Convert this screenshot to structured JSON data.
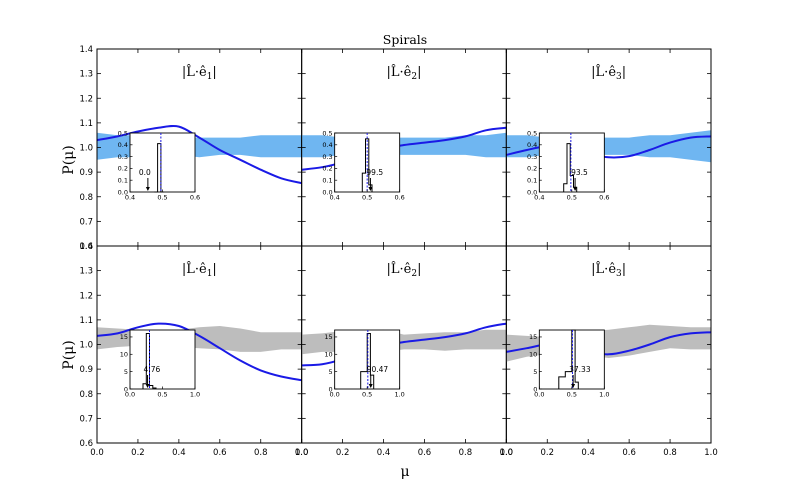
{
  "chart_data": {
    "type": "line",
    "title": "Spirals",
    "xlabel": "μ",
    "ylabel": "P(μ)",
    "colors": {
      "band_top": "#6fb6f1",
      "band_bottom": "#bdbdbd",
      "curve": "#1a1ae6",
      "inset_line": "#000000",
      "inset_median": "#1a1ae6",
      "inset_ref": "#000000"
    },
    "xlim": [
      0.0,
      1.0
    ],
    "xticks": [
      "0.0",
      "0.2",
      "0.4",
      "0.6",
      "0.8",
      "1.0"
    ],
    "rows": [
      {
        "name": "top",
        "ylim": [
          0.6,
          1.4
        ],
        "yticks": [
          "0.6",
          "0.7",
          "0.8",
          "0.9",
          "1.0",
          "1.1",
          "1.2",
          "1.3",
          "1.4"
        ],
        "ytick_values": [
          0.6,
          0.7,
          0.8,
          0.9,
          1.0,
          1.1,
          1.2,
          1.3,
          1.4
        ],
        "band_color": "#6fb6f1",
        "panels": [
          {
            "label": "|L̂·ê1|",
            "label_base": "|L̂·ê",
            "label_sub": "1",
            "band": {
              "x": [
                0,
                0.1,
                0.2,
                0.3,
                0.4,
                0.5,
                0.6,
                0.7,
                0.8,
                0.9,
                1.0
              ],
              "lower": [
                0.95,
                0.96,
                0.96,
                0.97,
                0.97,
                0.96,
                0.97,
                0.97,
                0.96,
                0.96,
                0.96
              ],
              "upper": [
                1.06,
                1.05,
                1.05,
                1.04,
                1.04,
                1.04,
                1.04,
                1.04,
                1.05,
                1.05,
                1.05
              ]
            },
            "curve": {
              "x": [
                0,
                0.1,
                0.2,
                0.3,
                0.4,
                0.5,
                0.6,
                0.7,
                0.8,
                0.9,
                1.0
              ],
              "y": [
                1.03,
                1.045,
                1.065,
                1.08,
                1.085,
                1.04,
                0.99,
                0.95,
                0.91,
                0.875,
                0.855
              ]
            },
            "inset": {
              "xlim": [
                0.4,
                0.6
              ],
              "ylim": [
                0.0,
                0.5
              ],
              "xticks": [
                "0.4",
                "0.5",
                "0.6"
              ],
              "yticks": [
                "0.0",
                "0.1",
                "0.2",
                "0.3",
                "0.4",
                "0.5"
              ],
              "ytick_values": [
                0.0,
                0.1,
                0.2,
                0.3,
                0.4,
                0.5
              ],
              "xtick_values": [
                0.4,
                0.5,
                0.6
              ],
              "bins": [
                0.475,
                0.485,
                0.495,
                0.505
              ],
              "counts": [
                0.0,
                0.41,
                0.0
              ],
              "median": 0.495,
              "reference": 0.455,
              "annotation": "0.0"
            }
          },
          {
            "label": "|L̂·ê2|",
            "label_base": "|L̂·ê",
            "label_sub": "2",
            "band": {
              "x": [
                0,
                0.1,
                0.2,
                0.3,
                0.4,
                0.5,
                0.6,
                0.7,
                0.8,
                0.9,
                1.0
              ],
              "lower": [
                0.96,
                0.96,
                0.97,
                0.97,
                0.97,
                0.97,
                0.97,
                0.97,
                0.97,
                0.96,
                0.96
              ],
              "upper": [
                1.05,
                1.05,
                1.04,
                1.04,
                1.04,
                1.04,
                1.04,
                1.04,
                1.05,
                1.05,
                1.06
              ]
            },
            "curve": {
              "x": [
                0,
                0.1,
                0.2,
                0.3,
                0.4,
                0.5,
                0.6,
                0.7,
                0.8,
                0.9,
                1.0
              ],
              "y": [
                0.91,
                0.92,
                0.94,
                0.97,
                0.995,
                1.01,
                1.02,
                1.03,
                1.045,
                1.07,
                1.08
              ]
            },
            "inset": {
              "xlim": [
                0.4,
                0.6
              ],
              "ylim": [
                0.0,
                0.5
              ],
              "xticks": [
                "0.4",
                "0.5",
                "0.6"
              ],
              "yticks": [
                "0.0",
                "0.1",
                "0.2",
                "0.3",
                "0.4",
                "0.5"
              ],
              "ytick_values": [
                0.0,
                0.1,
                0.2,
                0.3,
                0.4,
                0.5
              ],
              "xtick_values": [
                0.4,
                0.5,
                0.6
              ],
              "bins": [
                0.485,
                0.495,
                0.505,
                0.515
              ],
              "counts": [
                0.16,
                0.45,
                0.06
              ],
              "median": 0.5,
              "reference": 0.51,
              "annotation": "99.5"
            }
          },
          {
            "label": "|L̂·ê3|",
            "label_base": "|L̂·ê",
            "label_sub": "3",
            "band": {
              "x": [
                0,
                0.1,
                0.2,
                0.3,
                0.4,
                0.5,
                0.6,
                0.7,
                0.8,
                0.9,
                1.0
              ],
              "lower": [
                0.96,
                0.96,
                0.97,
                0.97,
                0.97,
                0.97,
                0.97,
                0.96,
                0.96,
                0.95,
                0.94
              ],
              "upper": [
                1.05,
                1.05,
                1.04,
                1.04,
                1.04,
                1.04,
                1.04,
                1.05,
                1.05,
                1.06,
                1.07
              ]
            },
            "curve": {
              "x": [
                0,
                0.1,
                0.2,
                0.3,
                0.4,
                0.5,
                0.6,
                0.7,
                0.8,
                0.9,
                1.0
              ],
              "y": [
                0.97,
                0.99,
                1.005,
                1.0,
                0.975,
                0.96,
                0.965,
                0.99,
                1.02,
                1.04,
                1.045
              ]
            },
            "inset": {
              "xlim": [
                0.4,
                0.6
              ],
              "ylim": [
                0.0,
                0.5
              ],
              "xticks": [
                "0.4",
                "0.5",
                "0.6"
              ],
              "yticks": [
                "0.0",
                "0.1",
                "0.2",
                "0.3",
                "0.4",
                "0.5"
              ],
              "ytick_values": [
                0.0,
                0.1,
                0.2,
                0.3,
                0.4,
                0.5
              ],
              "xtick_values": [
                0.4,
                0.5,
                0.6
              ],
              "bins": [
                0.475,
                0.485,
                0.495,
                0.505,
                0.515
              ],
              "counts": [
                0.07,
                0.41,
                0.14,
                0.04
              ],
              "median": 0.497,
              "reference": 0.51,
              "annotation": "93.5"
            }
          }
        ]
      },
      {
        "name": "bottom",
        "ylim": [
          0.6,
          1.4
        ],
        "yticks": [
          "0.6",
          "0.7",
          "0.8",
          "0.9",
          "1.0",
          "1.1",
          "1.2",
          "1.3",
          "1.4"
        ],
        "ytick_values": [
          0.6,
          0.7,
          0.8,
          0.9,
          1.0,
          1.1,
          1.2,
          1.3,
          1.4
        ],
        "band_color": "#bdbdbd",
        "panels": [
          {
            "label": "|L̂·ê1|",
            "label_base": "|L̂·ê",
            "label_sub": "1",
            "band": {
              "x": [
                0,
                0.1,
                0.2,
                0.3,
                0.4,
                0.5,
                0.6,
                0.7,
                0.8,
                0.9,
                1.0
              ],
              "lower": [
                0.98,
                0.99,
                0.995,
                0.995,
                0.99,
                0.985,
                0.98,
                0.97,
                0.97,
                0.98,
                0.98
              ],
              "upper": [
                1.07,
                1.065,
                1.06,
                1.055,
                1.06,
                1.07,
                1.075,
                1.065,
                1.05,
                1.05,
                1.05
              ]
            },
            "curve": {
              "x": [
                0,
                0.1,
                0.2,
                0.3,
                0.4,
                0.5,
                0.6,
                0.7,
                0.8,
                0.9,
                1.0
              ],
              "y": [
                1.035,
                1.045,
                1.07,
                1.085,
                1.075,
                1.035,
                0.985,
                0.935,
                0.895,
                0.87,
                0.855
              ]
            },
            "inset": {
              "xlim": [
                0.0,
                1.0
              ],
              "ylim": [
                0,
                17
              ],
              "xticks": [
                "0.0",
                "0.5",
                "1.0"
              ],
              "yticks": [
                "0",
                "5",
                "10",
                "15"
              ],
              "ytick_values": [
                0,
                5,
                10,
                15
              ],
              "xtick_values": [
                0.0,
                0.5,
                1.0
              ],
              "bins": [
                0.2,
                0.25,
                0.3,
                0.35,
                0.4
              ],
              "counts": [
                1.5,
                16,
                1.0,
                0.3
              ],
              "median": 0.3,
              "reference": 0.27,
              "annotation": "4.76"
            }
          },
          {
            "label": "|L̂·ê2|",
            "label_base": "|L̂·ê",
            "label_sub": "2",
            "band": {
              "x": [
                0,
                0.1,
                0.2,
                0.3,
                0.4,
                0.5,
                0.6,
                0.7,
                0.8,
                0.9,
                1.0
              ],
              "lower": [
                0.96,
                0.97,
                0.97,
                0.96,
                0.97,
                0.98,
                0.98,
                0.975,
                0.98,
                0.98,
                0.98
              ],
              "upper": [
                1.04,
                1.045,
                1.055,
                1.04,
                1.06,
                1.04,
                1.045,
                1.05,
                1.05,
                1.06,
                1.06
              ]
            },
            "curve": {
              "x": [
                0,
                0.1,
                0.2,
                0.3,
                0.4,
                0.5,
                0.6,
                0.7,
                0.8,
                0.9,
                1.0
              ],
              "y": [
                0.915,
                0.92,
                0.94,
                0.97,
                0.995,
                1.01,
                1.02,
                1.03,
                1.045,
                1.07,
                1.085
              ]
            },
            "inset": {
              "xlim": [
                0.0,
                1.0
              ],
              "ylim": [
                0,
                17
              ],
              "xticks": [
                "0.0",
                "0.5",
                "1.0"
              ],
              "yticks": [
                "0",
                "5",
                "10",
                "15"
              ],
              "ytick_values": [
                0,
                5,
                10,
                15
              ],
              "xtick_values": [
                0.0,
                0.5,
                1.0
              ],
              "bins": [
                0.4,
                0.5,
                0.55,
                0.6
              ],
              "counts": [
                5,
                16,
                4
              ],
              "median": 0.51,
              "reference": 0.555,
              "annotation": "90.47"
            }
          },
          {
            "label": "|L̂·ê3|",
            "label_base": "|L̂·ê",
            "label_sub": "3",
            "band": {
              "x": [
                0,
                0.1,
                0.2,
                0.3,
                0.4,
                0.5,
                0.6,
                0.7,
                0.8,
                0.9,
                1.0
              ],
              "lower": [
                0.93,
                0.95,
                0.96,
                0.97,
                0.955,
                0.945,
                0.955,
                0.97,
                0.985,
                0.98,
                0.98
              ],
              "upper": [
                1.04,
                1.035,
                1.03,
                1.045,
                1.055,
                1.06,
                1.07,
                1.08,
                1.075,
                1.07,
                1.07
              ]
            },
            "curve": {
              "x": [
                0,
                0.1,
                0.2,
                0.3,
                0.4,
                0.5,
                0.6,
                0.7,
                0.8,
                0.9,
                1.0
              ],
              "y": [
                0.97,
                0.985,
                1.0,
                0.99,
                0.97,
                0.96,
                0.975,
                1.0,
                1.03,
                1.045,
                1.05
              ]
            },
            "inset": {
              "xlim": [
                0.0,
                1.0
              ],
              "ylim": [
                0,
                17
              ],
              "xticks": [
                "0.0",
                "0.5",
                "1.0"
              ],
              "yticks": [
                "0",
                "5",
                "10",
                "15"
              ],
              "ytick_values": [
                0,
                5,
                10,
                15
              ],
              "xtick_values": [
                0.0,
                0.5,
                1.0
              ],
              "bins": [
                0.3,
                0.4,
                0.5,
                0.55,
                0.6
              ],
              "counts": [
                3.5,
                5,
                17,
                2
              ],
              "median": 0.51,
              "reference": 0.52,
              "annotation": "37.33"
            }
          }
        ]
      }
    ]
  }
}
